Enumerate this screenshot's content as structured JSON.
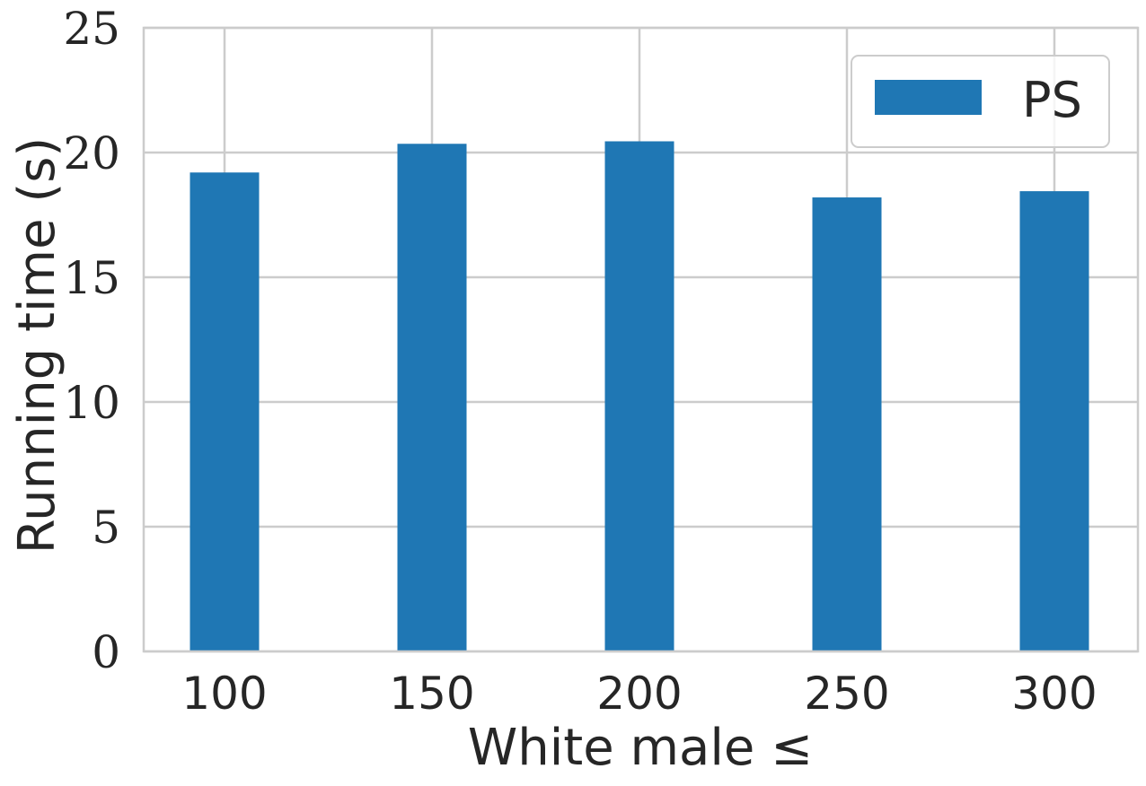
{
  "chart_data": {
    "type": "bar",
    "categories": [
      "100",
      "150",
      "200",
      "250",
      "300"
    ],
    "series": [
      {
        "name": "PS",
        "values": [
          19.2,
          20.35,
          20.45,
          18.2,
          18.45
        ],
        "color": "#1f77b4"
      }
    ],
    "xlabel": "White male ≤",
    "ylabel": "Running time (s)",
    "ylim": [
      0,
      25
    ],
    "yticks": [
      0,
      5,
      10,
      15,
      20,
      25
    ],
    "grid": true,
    "legend_position": "top-right"
  }
}
